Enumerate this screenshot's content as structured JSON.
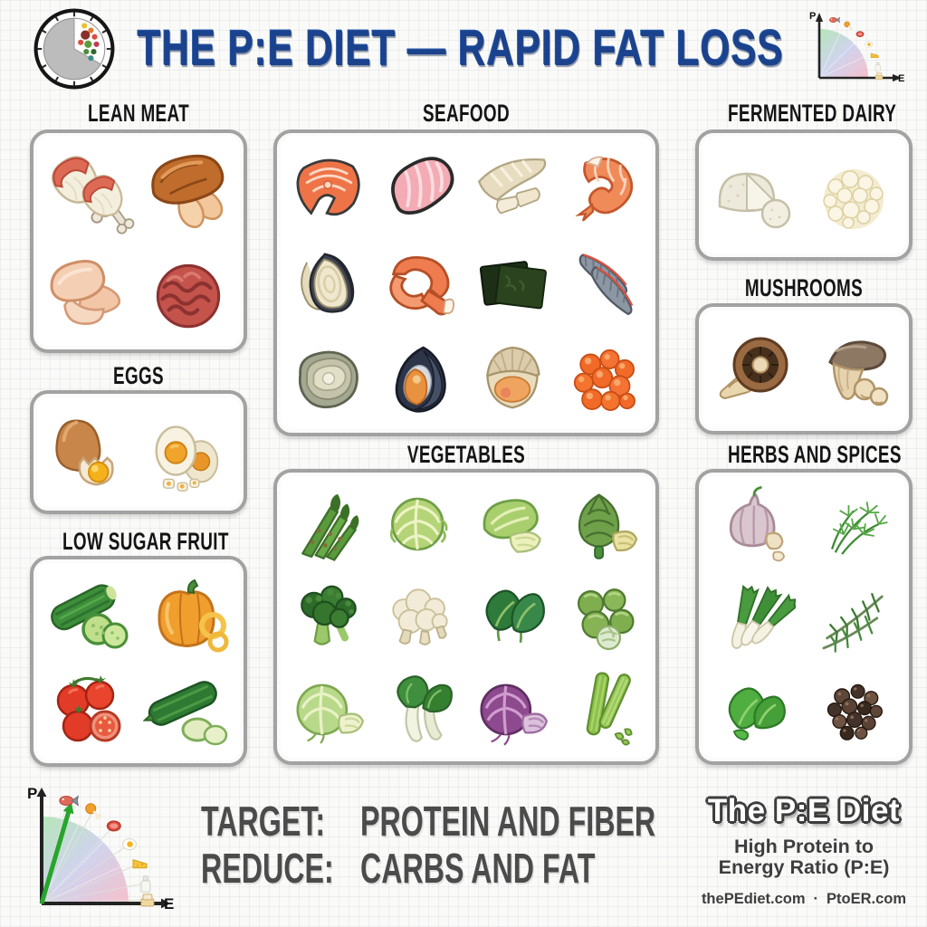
{
  "header": {
    "title": "THE P:E DIET — RAPID FAT LOSS",
    "logo_icon": "plate-clock-pie-logo",
    "corner_chart": {
      "y_axis_label": "P",
      "x_axis_label": "E",
      "arc_icons": [
        "fish",
        "chicken-drumstick",
        "steak",
        "fried-egg",
        "cheese",
        "milk-bottle",
        "butter"
      ]
    }
  },
  "categories": [
    {
      "id": "lean-meat",
      "label": "LEAN MEAT",
      "items": [
        "chicken-drumsticks",
        "roasted-chicken-breast",
        "raw-chicken-fillets",
        "ground-beef"
      ]
    },
    {
      "id": "seafood",
      "label": "SEAFOOD",
      "items": [
        "salmon-steak",
        "tuna-fillet",
        "white-fish-fillet",
        "shrimp",
        "halibut-slices",
        "crab-claw",
        "seaweed-nori",
        "sardine-fillets",
        "oyster",
        "mussel",
        "clam",
        "salmon-roe"
      ]
    },
    {
      "id": "fermented-dairy",
      "label": "FERMENTED DAIRY",
      "items": [
        "soft-cheese",
        "cottage-cheese"
      ]
    },
    {
      "id": "mushrooms",
      "label": "MUSHROOMS",
      "items": [
        "portobello-mushroom",
        "oyster-mushrooms"
      ]
    },
    {
      "id": "eggs",
      "label": "EGGS",
      "items": [
        "cracked-egg",
        "boiled-egg"
      ]
    },
    {
      "id": "low-sugar-fruit",
      "label": "LOW SUGAR FRUIT",
      "items": [
        "cucumber",
        "bell-pepper",
        "vine-tomatoes",
        "zucchini"
      ]
    },
    {
      "id": "vegetables",
      "label": "VEGETABLES",
      "items": [
        "asparagus",
        "savoy-cabbage",
        "romaine-lettuce",
        "artichoke",
        "broccoli",
        "cauliflower",
        "spinach",
        "brussels-sprouts",
        "green-cabbage",
        "bok-choy",
        "red-cabbage",
        "celery"
      ]
    },
    {
      "id": "herbs-and-spices",
      "label": "HERBS AND SPICES",
      "items": [
        "garlic",
        "dill",
        "green-onions",
        "rosemary",
        "basil",
        "peppercorns"
      ]
    }
  ],
  "footer": {
    "chart": {
      "y_axis_label": "P",
      "x_axis_label": "E",
      "arrow": "high-protein-to-energy-direction"
    },
    "target_label": "TARGET:",
    "target_value": "PROTEIN AND FIBER",
    "reduce_label": "REDUCE:",
    "reduce_value": "CARBS AND FAT",
    "brand_title": "The P:E Diet",
    "brand_subtitle_line1": "High Protein to",
    "brand_subtitle_line2": "Energy Ratio (P:E)",
    "brand_url_left": "thePEdiet.com",
    "brand_url_separator": "·",
    "brand_url_right": "PtoER.com"
  },
  "colors": {
    "title_blue": "#1b428c",
    "heading_black": "#151515",
    "footer_gray": "#4b4b4b",
    "box_border": "#a2a2a2",
    "background": "#fafaf8",
    "arrow_green": "#28a52c"
  }
}
